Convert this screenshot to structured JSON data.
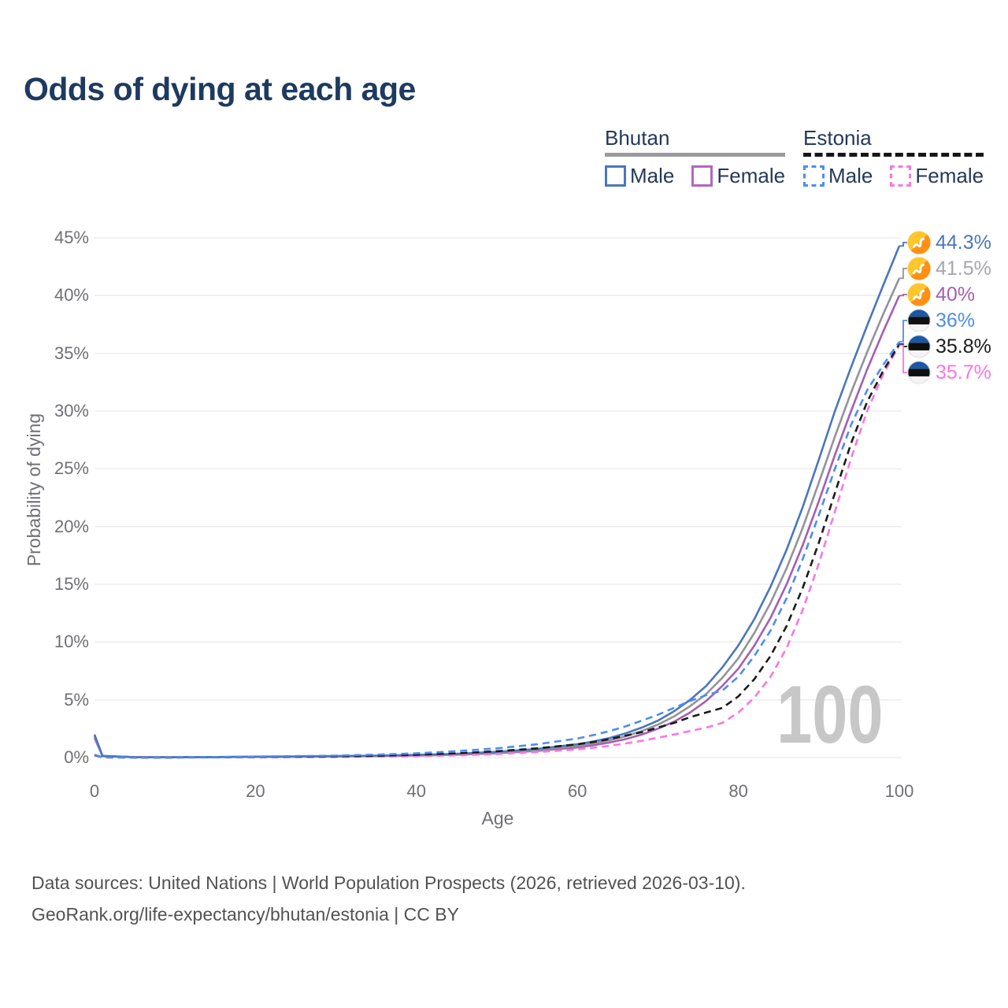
{
  "title": "Odds of dying at each age",
  "legend": {
    "groups": [
      {
        "country": "Bhutan",
        "line_style": "solid",
        "underline_color": "#9b9b9b",
        "items": [
          {
            "label": "Male",
            "color": "#4a77bc"
          },
          {
            "label": "Female",
            "color": "#b267bd"
          }
        ]
      },
      {
        "country": "Estonia",
        "line_style": "dashed",
        "underline_color": "#161616",
        "items": [
          {
            "label": "Male",
            "color": "#4d8df0"
          },
          {
            "label": "Female",
            "color": "#fb76e1"
          }
        ]
      }
    ]
  },
  "chart_data": {
    "type": "line",
    "title": "Odds of dying at each age",
    "xlabel": "Age",
    "ylabel": "Probability of dying",
    "xlim": [
      0,
      100
    ],
    "ylim": [
      0,
      45
    ],
    "grid": "horizontal",
    "legend_position": "top-right",
    "watermark": "100",
    "x_ticks": [
      {
        "v": 0,
        "label": "0"
      },
      {
        "v": 20,
        "label": "20"
      },
      {
        "v": 40,
        "label": "40"
      },
      {
        "v": 60,
        "label": "60"
      },
      {
        "v": 80,
        "label": "80"
      },
      {
        "v": 100,
        "label": "100"
      }
    ],
    "y_ticks": [
      {
        "v": 0,
        "label": "0%"
      },
      {
        "v": 5,
        "label": "5%"
      },
      {
        "v": 10,
        "label": "10%"
      },
      {
        "v": 15,
        "label": "15%"
      },
      {
        "v": 20,
        "label": "20%"
      },
      {
        "v": 25,
        "label": "25%"
      },
      {
        "v": 30,
        "label": "30%"
      },
      {
        "v": 35,
        "label": "35%"
      },
      {
        "v": 40,
        "label": "40%"
      },
      {
        "v": 45,
        "label": "45%"
      }
    ],
    "ages": [
      0,
      1,
      5,
      10,
      15,
      20,
      25,
      30,
      35,
      40,
      45,
      50,
      55,
      60,
      62,
      64,
      66,
      68,
      70,
      72,
      74,
      76,
      78,
      80,
      82,
      84,
      86,
      88,
      90,
      92,
      94,
      96,
      98,
      100
    ],
    "series": [
      {
        "id": "bhutan-male",
        "country": "Bhutan",
        "sex": "Male",
        "style": "solid",
        "color": "#4a77bc",
        "end_label": "44.3%",
        "label_color": "#4a77bc",
        "flag": "bhutan",
        "values": [
          2.0,
          0.15,
          0.04,
          0.03,
          0.05,
          0.08,
          0.1,
          0.13,
          0.17,
          0.23,
          0.33,
          0.5,
          0.75,
          1.15,
          1.4,
          1.7,
          2.1,
          2.6,
          3.2,
          4.0,
          5.0,
          6.2,
          7.8,
          9.7,
          12.0,
          14.8,
          18.0,
          21.7,
          25.8,
          30.0,
          33.8,
          37.4,
          40.9,
          44.3
        ]
      },
      {
        "id": "bhutan-total",
        "country": "Bhutan",
        "sex": "Both",
        "style": "solid",
        "color": "#939399",
        "end_label": "41.5%",
        "label_color": "#a6a6ac",
        "flag": "bhutan",
        "values": [
          1.85,
          0.13,
          0.035,
          0.028,
          0.045,
          0.07,
          0.09,
          0.115,
          0.15,
          0.2,
          0.29,
          0.44,
          0.66,
          1.0,
          1.22,
          1.5,
          1.85,
          2.3,
          2.85,
          3.55,
          4.45,
          5.5,
          6.9,
          8.6,
          10.8,
          13.4,
          16.4,
          19.9,
          23.8,
          27.8,
          31.6,
          35.1,
          38.4,
          41.5
        ]
      },
      {
        "id": "bhutan-female",
        "country": "Bhutan",
        "sex": "Female",
        "style": "solid",
        "color": "#a55fb2",
        "end_label": "40%",
        "label_color": "#a55fb2",
        "flag": "bhutan",
        "values": [
          1.7,
          0.12,
          0.03,
          0.025,
          0.04,
          0.06,
          0.075,
          0.095,
          0.13,
          0.17,
          0.25,
          0.38,
          0.58,
          0.88,
          1.07,
          1.3,
          1.6,
          2.0,
          2.5,
          3.1,
          3.9,
          4.9,
          6.2,
          7.7,
          9.7,
          12.1,
          15.0,
          18.4,
          22.2,
          26.2,
          30.0,
          33.6,
          36.9,
          40.0
        ]
      },
      {
        "id": "estonia-male",
        "country": "Estonia",
        "sex": "Male",
        "style": "dashed",
        "color": "#4d8df0",
        "end_label": "36%",
        "label_color": "#4d8df0",
        "flag": "estonia",
        "values": [
          0.25,
          0.02,
          0.01,
          0.012,
          0.04,
          0.09,
          0.12,
          0.17,
          0.25,
          0.37,
          0.55,
          0.8,
          1.15,
          1.65,
          1.95,
          2.3,
          2.7,
          3.2,
          3.7,
          4.3,
          4.9,
          5.4,
          5.8,
          7.0,
          8.8,
          11.0,
          13.8,
          17.2,
          21.0,
          25.0,
          28.8,
          31.8,
          34.0,
          36.0
        ]
      },
      {
        "id": "estonia-total",
        "country": "Estonia",
        "sex": "Both",
        "style": "dashed",
        "color": "#1b1b1b",
        "end_label": "35.8%",
        "label_color": "#1b1b1b",
        "flag": "estonia",
        "values": [
          0.22,
          0.018,
          0.009,
          0.01,
          0.03,
          0.06,
          0.08,
          0.11,
          0.16,
          0.24,
          0.36,
          0.55,
          0.8,
          1.15,
          1.35,
          1.6,
          1.9,
          2.2,
          2.6,
          3.0,
          3.5,
          3.9,
          4.3,
          5.3,
          6.8,
          8.8,
          11.4,
          14.7,
          18.6,
          22.9,
          27.2,
          30.8,
          33.5,
          35.8
        ]
      },
      {
        "id": "estonia-female",
        "country": "Estonia",
        "sex": "Female",
        "style": "dashed",
        "color": "#fb76e1",
        "end_label": "35.7%",
        "label_color": "#fb76e1",
        "flag": "estonia",
        "values": [
          0.2,
          0.015,
          0.008,
          0.009,
          0.02,
          0.03,
          0.04,
          0.055,
          0.08,
          0.12,
          0.19,
          0.3,
          0.47,
          0.7,
          0.85,
          1.02,
          1.22,
          1.45,
          1.72,
          2.0,
          2.3,
          2.6,
          3.0,
          3.9,
          5.2,
          7.0,
          9.5,
          12.8,
          16.8,
          21.3,
          25.9,
          30.0,
          33.2,
          35.7
        ]
      }
    ]
  },
  "footer": {
    "line1": "Data sources: United Nations | World Population Prospects (2026, retrieved 2026-03-10).",
    "line2": "GeoRank.org/life-expectancy/bhutan/estonia | CC BY"
  },
  "flag_colors": {
    "bhutan_yellow": "#ffc72c",
    "bhutan_orange": "#ff9015",
    "estonia_blue": "#1b57a4",
    "estonia_black": "#0f0f0f",
    "estonia_white": "#f4f4f4"
  }
}
